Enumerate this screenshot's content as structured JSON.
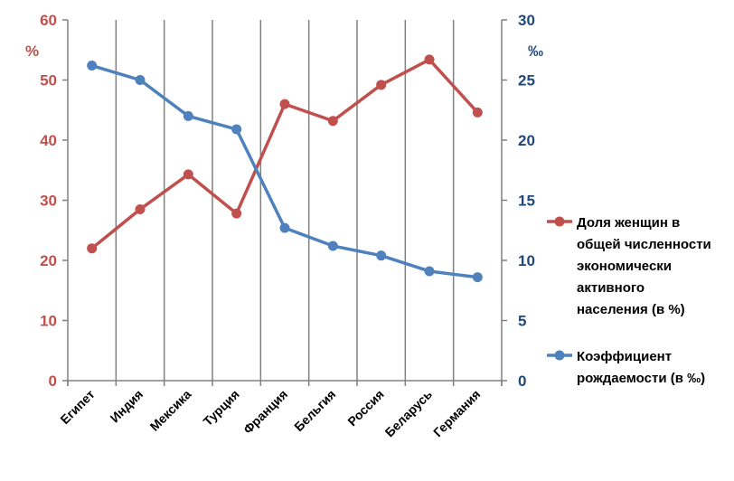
{
  "chart_data": {
    "type": "line",
    "categories": [
      "Египет",
      "Индия",
      "Мексика",
      "Турция",
      "Франция",
      "Бельгия",
      "Россия",
      "Беларусь",
      "Германия"
    ],
    "left_axis": {
      "unit": "%",
      "min": 0,
      "max": 60,
      "step": 10,
      "ticks": [
        "0",
        "10",
        "20",
        "30",
        "40",
        "50",
        "60"
      ]
    },
    "right_axis": {
      "unit": "‰",
      "min": 0,
      "max": 30,
      "step": 5,
      "ticks": [
        "0",
        "5",
        "10",
        "15",
        "20",
        "25",
        "30"
      ]
    },
    "series": [
      {
        "name": "Доля женщин в общей численности экономически активного населения (в %)",
        "legend_lines": [
          "Доля женщин в",
          "общей численности",
          "экономически",
          "активного",
          "населения (в %)"
        ],
        "axis": "left",
        "color": "#c0504d",
        "values": [
          22,
          28.5,
          34.3,
          27.8,
          46,
          43.2,
          49.2,
          53.4,
          44.6
        ]
      },
      {
        "name": "Коэффициент рождаемости (в ‰)",
        "legend_lines": [
          "Коэффициент",
          "рождаемости (в ‰)"
        ],
        "axis": "right",
        "color": "#4f81bd",
        "values": [
          26.2,
          25,
          22,
          20.9,
          12.7,
          11.2,
          10.4,
          9.1,
          8.6
        ]
      }
    ],
    "gridlines": "vertical",
    "legend_position": "right"
  }
}
